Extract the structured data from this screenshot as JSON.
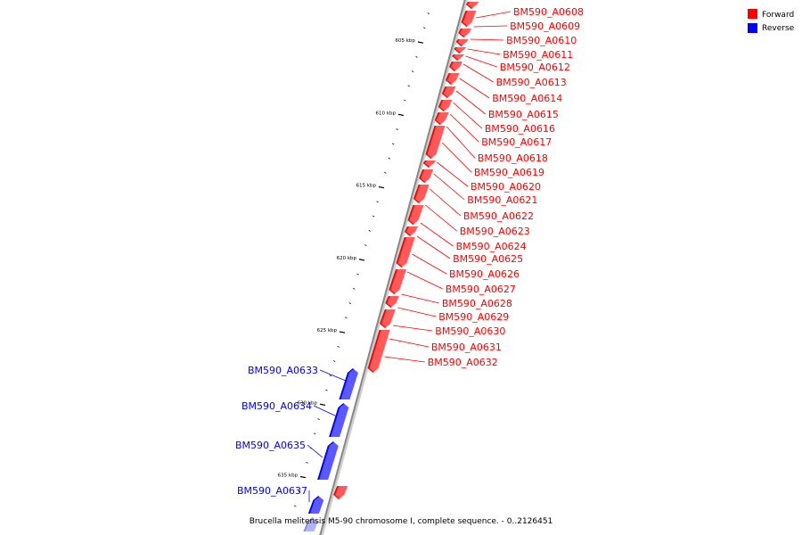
{
  "caption": "Brucella melitensis M5-90 chromosome I, complete sequence. - 0..2126451",
  "legend": [
    {
      "label": "Forward",
      "color": "#ff0000"
    },
    {
      "label": "Reverse",
      "color": "#0000ff"
    }
  ],
  "colors": {
    "forward": "#ff0000",
    "reverse": "#0000ff",
    "backbone": "#888888",
    "tick": "#000000"
  },
  "ticks": [
    {
      "kbp": 605,
      "label": "605 kbp"
    },
    {
      "kbp": 610,
      "label": "610 kbp"
    },
    {
      "kbp": 615,
      "label": "615 kbp"
    },
    {
      "kbp": 620,
      "label": "620 kbp"
    },
    {
      "kbp": 625,
      "label": "625 kbp"
    },
    {
      "kbp": 630,
      "label": "630 kbp"
    },
    {
      "kbp": 635,
      "label": "635 kbp"
    }
  ],
  "genes": [
    {
      "name": "BM590_A0608",
      "strand": "forward"
    },
    {
      "name": "BM590_A0609",
      "strand": "forward"
    },
    {
      "name": "BM590_A0610",
      "strand": "forward"
    },
    {
      "name": "BM590_A0611",
      "strand": "forward"
    },
    {
      "name": "BM590_A0612",
      "strand": "forward"
    },
    {
      "name": "BM590_A0613",
      "strand": "forward"
    },
    {
      "name": "BM590_A0614",
      "strand": "forward"
    },
    {
      "name": "BM590_A0615",
      "strand": "forward"
    },
    {
      "name": "BM590_A0616",
      "strand": "forward"
    },
    {
      "name": "BM590_A0617",
      "strand": "forward"
    },
    {
      "name": "BM590_A0618",
      "strand": "forward"
    },
    {
      "name": "BM590_A0619",
      "strand": "forward"
    },
    {
      "name": "BM590_A0620",
      "strand": "forward"
    },
    {
      "name": "BM590_A0621",
      "strand": "forward"
    },
    {
      "name": "BM590_A0622",
      "strand": "forward"
    },
    {
      "name": "BM590_A0623",
      "strand": "forward"
    },
    {
      "name": "BM590_A0624",
      "strand": "forward"
    },
    {
      "name": "BM590_A0625",
      "strand": "forward"
    },
    {
      "name": "BM590_A0626",
      "strand": "forward"
    },
    {
      "name": "BM590_A0627",
      "strand": "forward"
    },
    {
      "name": "BM590_A0628",
      "strand": "forward"
    },
    {
      "name": "BM590_A0629",
      "strand": "forward"
    },
    {
      "name": "BM590_A0630",
      "strand": "forward"
    },
    {
      "name": "BM590_A0631",
      "strand": "forward"
    },
    {
      "name": "BM590_A0632",
      "strand": "forward"
    },
    {
      "name": "BM590_A0633",
      "strand": "reverse"
    },
    {
      "name": "BM590_A0634",
      "strand": "reverse"
    },
    {
      "name": "BM590_A0635",
      "strand": "reverse"
    },
    {
      "name": "BM590_A0637",
      "strand": "reverse"
    }
  ]
}
